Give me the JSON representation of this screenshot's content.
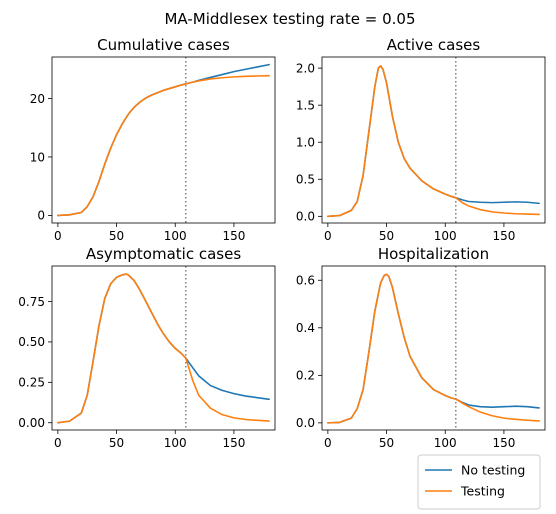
{
  "figure": {
    "suptitle": "MA-Middlesex testing rate = 0.05"
  },
  "colors": {
    "no_testing": "#1f77b4",
    "testing": "#ff7f0e",
    "vline": "#808080"
  },
  "legend": {
    "placement": "bottom-right",
    "entries": [
      "No testing",
      "Testing"
    ]
  },
  "chart_data": [
    {
      "type": "line",
      "title": "Cumulative cases",
      "xlim": [
        -5,
        185
      ],
      "ylim": [
        -1.3,
        27.1
      ],
      "xticks": [
        0,
        50,
        100,
        150
      ],
      "yticks": [
        0,
        10,
        20
      ],
      "ytick_labels": [
        "0",
        "10",
        "20"
      ],
      "vline_x": 109,
      "series": [
        {
          "name": "No testing",
          "x": [
            0,
            10,
            20,
            25,
            30,
            35,
            40,
            45,
            50,
            55,
            60,
            65,
            70,
            75,
            80,
            90,
            100,
            105,
            109,
            115,
            120,
            130,
            140,
            150,
            160,
            170,
            180
          ],
          "y": [
            0,
            0.1,
            0.5,
            1.5,
            3.2,
            5.8,
            8.8,
            11.5,
            13.8,
            15.7,
            17.3,
            18.5,
            19.4,
            20.1,
            20.6,
            21.4,
            22.0,
            22.3,
            22.5,
            22.8,
            23.1,
            23.6,
            24.1,
            24.6,
            25.0,
            25.4,
            25.8
          ]
        },
        {
          "name": "Testing",
          "x": [
            0,
            10,
            20,
            25,
            30,
            35,
            40,
            45,
            50,
            55,
            60,
            65,
            70,
            75,
            80,
            90,
            100,
            105,
            109,
            115,
            120,
            130,
            140,
            150,
            160,
            170,
            180
          ],
          "y": [
            0,
            0.1,
            0.5,
            1.5,
            3.2,
            5.8,
            8.8,
            11.5,
            13.8,
            15.7,
            17.3,
            18.5,
            19.4,
            20.1,
            20.6,
            21.4,
            22.0,
            22.3,
            22.5,
            22.8,
            23.0,
            23.35,
            23.55,
            23.7,
            23.8,
            23.85,
            23.9
          ]
        }
      ]
    },
    {
      "type": "line",
      "title": "Active cases",
      "xlim": [
        -5,
        185
      ],
      "ylim": [
        -0.09,
        2.15
      ],
      "xticks": [
        0,
        50,
        100,
        150
      ],
      "yticks": [
        0,
        0.5,
        1,
        1.5,
        2
      ],
      "ytick_labels": [
        "0.0",
        "0.5",
        "1.0",
        "1.5",
        "2.0"
      ],
      "vline_x": 109,
      "series": [
        {
          "name": "No testing",
          "x": [
            0,
            10,
            20,
            25,
            30,
            35,
            40,
            43,
            45,
            47,
            50,
            55,
            60,
            65,
            70,
            80,
            90,
            100,
            105,
            109,
            115,
            120,
            130,
            140,
            150,
            160,
            170,
            180
          ],
          "y": [
            0,
            0.01,
            0.08,
            0.2,
            0.55,
            1.15,
            1.75,
            2.0,
            2.03,
            1.98,
            1.8,
            1.35,
            1.0,
            0.78,
            0.65,
            0.48,
            0.37,
            0.3,
            0.27,
            0.25,
            0.22,
            0.2,
            0.19,
            0.185,
            0.19,
            0.195,
            0.19,
            0.175
          ]
        },
        {
          "name": "Testing",
          "x": [
            0,
            10,
            20,
            25,
            30,
            35,
            40,
            43,
            45,
            47,
            50,
            55,
            60,
            65,
            70,
            80,
            90,
            100,
            105,
            109,
            115,
            120,
            130,
            140,
            150,
            160,
            170,
            180
          ],
          "y": [
            0,
            0.01,
            0.08,
            0.2,
            0.55,
            1.15,
            1.75,
            2.0,
            2.03,
            1.98,
            1.8,
            1.35,
            1.0,
            0.78,
            0.65,
            0.48,
            0.37,
            0.3,
            0.27,
            0.25,
            0.18,
            0.14,
            0.09,
            0.06,
            0.045,
            0.035,
            0.03,
            0.025
          ]
        }
      ]
    },
    {
      "type": "line",
      "title": "Asymptomatic cases",
      "xlim": [
        -5,
        185
      ],
      "ylim": [
        -0.045,
        0.97
      ],
      "xticks": [
        0,
        50,
        100,
        150
      ],
      "yticks": [
        0,
        0.25,
        0.5,
        0.75
      ],
      "ytick_labels": [
        "0.00",
        "0.25",
        "0.50",
        "0.75"
      ],
      "vline_x": 109,
      "series": [
        {
          "name": "No testing",
          "x": [
            0,
            10,
            20,
            25,
            30,
            35,
            40,
            45,
            50,
            55,
            58,
            60,
            65,
            70,
            75,
            80,
            85,
            90,
            95,
            100,
            105,
            109,
            115,
            120,
            130,
            140,
            150,
            160,
            170,
            180
          ],
          "y": [
            0,
            0.01,
            0.06,
            0.17,
            0.38,
            0.6,
            0.77,
            0.86,
            0.9,
            0.915,
            0.92,
            0.915,
            0.88,
            0.82,
            0.75,
            0.68,
            0.61,
            0.55,
            0.5,
            0.46,
            0.43,
            0.4,
            0.34,
            0.29,
            0.23,
            0.2,
            0.18,
            0.165,
            0.155,
            0.145
          ]
        },
        {
          "name": "Testing",
          "x": [
            0,
            10,
            20,
            25,
            30,
            35,
            40,
            45,
            50,
            55,
            58,
            60,
            65,
            70,
            75,
            80,
            85,
            90,
            95,
            100,
            105,
            109,
            115,
            120,
            130,
            140,
            150,
            160,
            170,
            180
          ],
          "y": [
            0,
            0.01,
            0.06,
            0.17,
            0.38,
            0.6,
            0.77,
            0.86,
            0.9,
            0.915,
            0.92,
            0.915,
            0.88,
            0.82,
            0.75,
            0.68,
            0.61,
            0.55,
            0.5,
            0.46,
            0.43,
            0.4,
            0.26,
            0.17,
            0.09,
            0.05,
            0.03,
            0.02,
            0.015,
            0.01
          ]
        }
      ]
    },
    {
      "type": "line",
      "title": "Hospitalization",
      "xlim": [
        -5,
        185
      ],
      "ylim": [
        -0.03,
        0.66
      ],
      "xticks": [
        0,
        50,
        100,
        150
      ],
      "yticks": [
        0,
        0.2,
        0.4,
        0.6
      ],
      "ytick_labels": [
        "0.0",
        "0.2",
        "0.4",
        "0.6"
      ],
      "vline_x": 109,
      "series": [
        {
          "name": "No testing",
          "x": [
            0,
            10,
            20,
            25,
            30,
            35,
            40,
            45,
            48,
            50,
            52,
            55,
            60,
            65,
            70,
            80,
            90,
            100,
            105,
            109,
            115,
            120,
            130,
            140,
            150,
            160,
            170,
            180
          ],
          "y": [
            0,
            0.002,
            0.02,
            0.06,
            0.14,
            0.3,
            0.47,
            0.59,
            0.62,
            0.625,
            0.615,
            0.57,
            0.46,
            0.36,
            0.28,
            0.19,
            0.14,
            0.115,
            0.105,
            0.1,
            0.085,
            0.075,
            0.068,
            0.066,
            0.068,
            0.07,
            0.068,
            0.063
          ]
        },
        {
          "name": "Testing",
          "x": [
            0,
            10,
            20,
            25,
            30,
            35,
            40,
            45,
            48,
            50,
            52,
            55,
            60,
            65,
            70,
            80,
            90,
            100,
            105,
            109,
            115,
            120,
            130,
            140,
            150,
            160,
            170,
            180
          ],
          "y": [
            0,
            0.002,
            0.02,
            0.06,
            0.14,
            0.3,
            0.47,
            0.59,
            0.62,
            0.625,
            0.615,
            0.57,
            0.46,
            0.36,
            0.28,
            0.19,
            0.14,
            0.115,
            0.105,
            0.1,
            0.082,
            0.068,
            0.045,
            0.03,
            0.02,
            0.015,
            0.011,
            0.008
          ]
        }
      ]
    }
  ]
}
